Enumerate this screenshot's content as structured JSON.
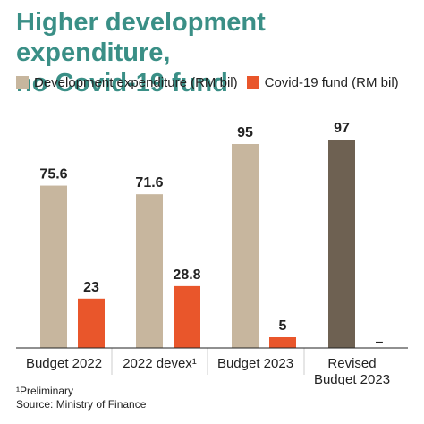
{
  "title": {
    "line1": "Higher development expenditure,",
    "line2": "no Covid-19 fund"
  },
  "colors": {
    "title": "#3a8f86",
    "development": "#c7b69e",
    "development_revised": "#6e6152",
    "covid": "#e9562b",
    "axis": "#222222",
    "separator": "#cccccc"
  },
  "footnotes": {
    "preliminary": "¹Preliminary",
    "source": "Source: Ministry of Finance"
  },
  "chart_data": {
    "type": "bar",
    "categories": [
      "Budget 2022",
      "2022 devex¹",
      "Budget 2023",
      "Revised Budget 2023"
    ],
    "category_lines": [
      [
        "Budget 2022"
      ],
      [
        "2022 devex¹"
      ],
      [
        "Budget 2023"
      ],
      [
        "Revised",
        "Budget 2023"
      ]
    ],
    "series": [
      {
        "name": "Development expenditure (RM bil)",
        "values": [
          75.6,
          71.6,
          95,
          97
        ],
        "labels": [
          "75.6",
          "71.6",
          "95",
          "97"
        ]
      },
      {
        "name": "Covid-19 fund (RM bil)",
        "values": [
          23,
          28.8,
          5,
          null
        ],
        "labels": [
          "23",
          "28.8",
          "5",
          "–"
        ]
      }
    ],
    "ylim": [
      0,
      100
    ],
    "grid": false,
    "legend": "top-left"
  }
}
